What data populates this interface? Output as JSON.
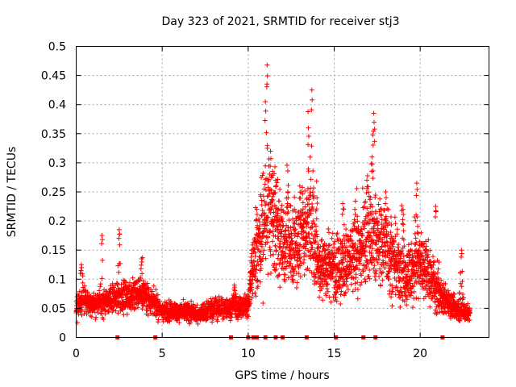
{
  "chart_data": {
    "type": "scatter",
    "title": "Day 323 of 2021, SRMTID for receiver stj3",
    "xlabel": "GPS time / hours",
    "ylabel": "SRMTID / TECUs",
    "xlim": [
      0,
      24
    ],
    "ylim": [
      0,
      0.5
    ],
    "xticks": [
      0,
      5,
      10,
      15,
      20
    ],
    "yticks": [
      0,
      0.05,
      0.1,
      0.15,
      0.2,
      0.25,
      0.3,
      0.35,
      0.4,
      0.45,
      0.5
    ],
    "xtick_labels": [
      "0",
      "5",
      "10",
      "15",
      "20"
    ],
    "ytick_labels": [
      "0",
      "0.05",
      "0.1",
      "0.15",
      "0.2",
      "0.25",
      "0.3",
      "0.35",
      "0.4",
      "0.45",
      "0.5"
    ],
    "grid": true,
    "marker": "+",
    "color": "#ff0000",
    "profile": [
      {
        "x": 0.0,
        "y": 0.05
      },
      {
        "x": 0.5,
        "y": 0.065
      },
      {
        "x": 1.0,
        "y": 0.055
      },
      {
        "x": 1.5,
        "y": 0.06
      },
      {
        "x": 2.0,
        "y": 0.065
      },
      {
        "x": 2.5,
        "y": 0.07
      },
      {
        "x": 3.0,
        "y": 0.07
      },
      {
        "x": 3.5,
        "y": 0.075
      },
      {
        "x": 4.0,
        "y": 0.075
      },
      {
        "x": 4.5,
        "y": 0.06
      },
      {
        "x": 5.0,
        "y": 0.045
      },
      {
        "x": 6.0,
        "y": 0.045
      },
      {
        "x": 7.0,
        "y": 0.04
      },
      {
        "x": 8.0,
        "y": 0.05
      },
      {
        "x": 9.0,
        "y": 0.05
      },
      {
        "x": 10.0,
        "y": 0.055
      },
      {
        "x": 10.3,
        "y": 0.12
      },
      {
        "x": 10.8,
        "y": 0.18
      },
      {
        "x": 11.2,
        "y": 0.22
      },
      {
        "x": 12.0,
        "y": 0.16
      },
      {
        "x": 13.0,
        "y": 0.17
      },
      {
        "x": 13.6,
        "y": 0.2
      },
      {
        "x": 14.0,
        "y": 0.13
      },
      {
        "x": 15.0,
        "y": 0.12
      },
      {
        "x": 16.0,
        "y": 0.13
      },
      {
        "x": 17.0,
        "y": 0.17
      },
      {
        "x": 18.0,
        "y": 0.16
      },
      {
        "x": 19.0,
        "y": 0.1
      },
      {
        "x": 20.0,
        "y": 0.13
      },
      {
        "x": 21.0,
        "y": 0.08
      },
      {
        "x": 22.0,
        "y": 0.05
      },
      {
        "x": 22.9,
        "y": 0.04
      }
    ],
    "spikes": [
      {
        "x": 0.3,
        "y": 0.125
      },
      {
        "x": 1.5,
        "y": 0.175
      },
      {
        "x": 2.5,
        "y": 0.185
      },
      {
        "x": 3.8,
        "y": 0.135
      },
      {
        "x": 9.2,
        "y": 0.09
      },
      {
        "x": 10.2,
        "y": 0.15
      },
      {
        "x": 10.5,
        "y": 0.22
      },
      {
        "x": 11.0,
        "y": 0.405
      },
      {
        "x": 11.1,
        "y": 0.468
      },
      {
        "x": 11.3,
        "y": 0.32
      },
      {
        "x": 11.6,
        "y": 0.27
      },
      {
        "x": 12.3,
        "y": 0.25
      },
      {
        "x": 13.0,
        "y": 0.26
      },
      {
        "x": 13.5,
        "y": 0.36
      },
      {
        "x": 13.7,
        "y": 0.425
      },
      {
        "x": 14.0,
        "y": 0.24
      },
      {
        "x": 15.5,
        "y": 0.23
      },
      {
        "x": 16.2,
        "y": 0.22
      },
      {
        "x": 16.9,
        "y": 0.27
      },
      {
        "x": 17.2,
        "y": 0.31
      },
      {
        "x": 17.3,
        "y": 0.385
      },
      {
        "x": 18.0,
        "y": 0.25
      },
      {
        "x": 19.0,
        "y": 0.22
      },
      {
        "x": 19.8,
        "y": 0.265
      },
      {
        "x": 20.9,
        "y": 0.225
      },
      {
        "x": 22.4,
        "y": 0.15
      }
    ],
    "zero_markers_x": [
      2.4,
      4.6,
      9.0,
      10.0,
      10.3,
      10.5,
      11.0,
      11.6,
      12.0,
      13.4,
      15.1,
      16.7,
      17.4,
      21.3
    ]
  }
}
